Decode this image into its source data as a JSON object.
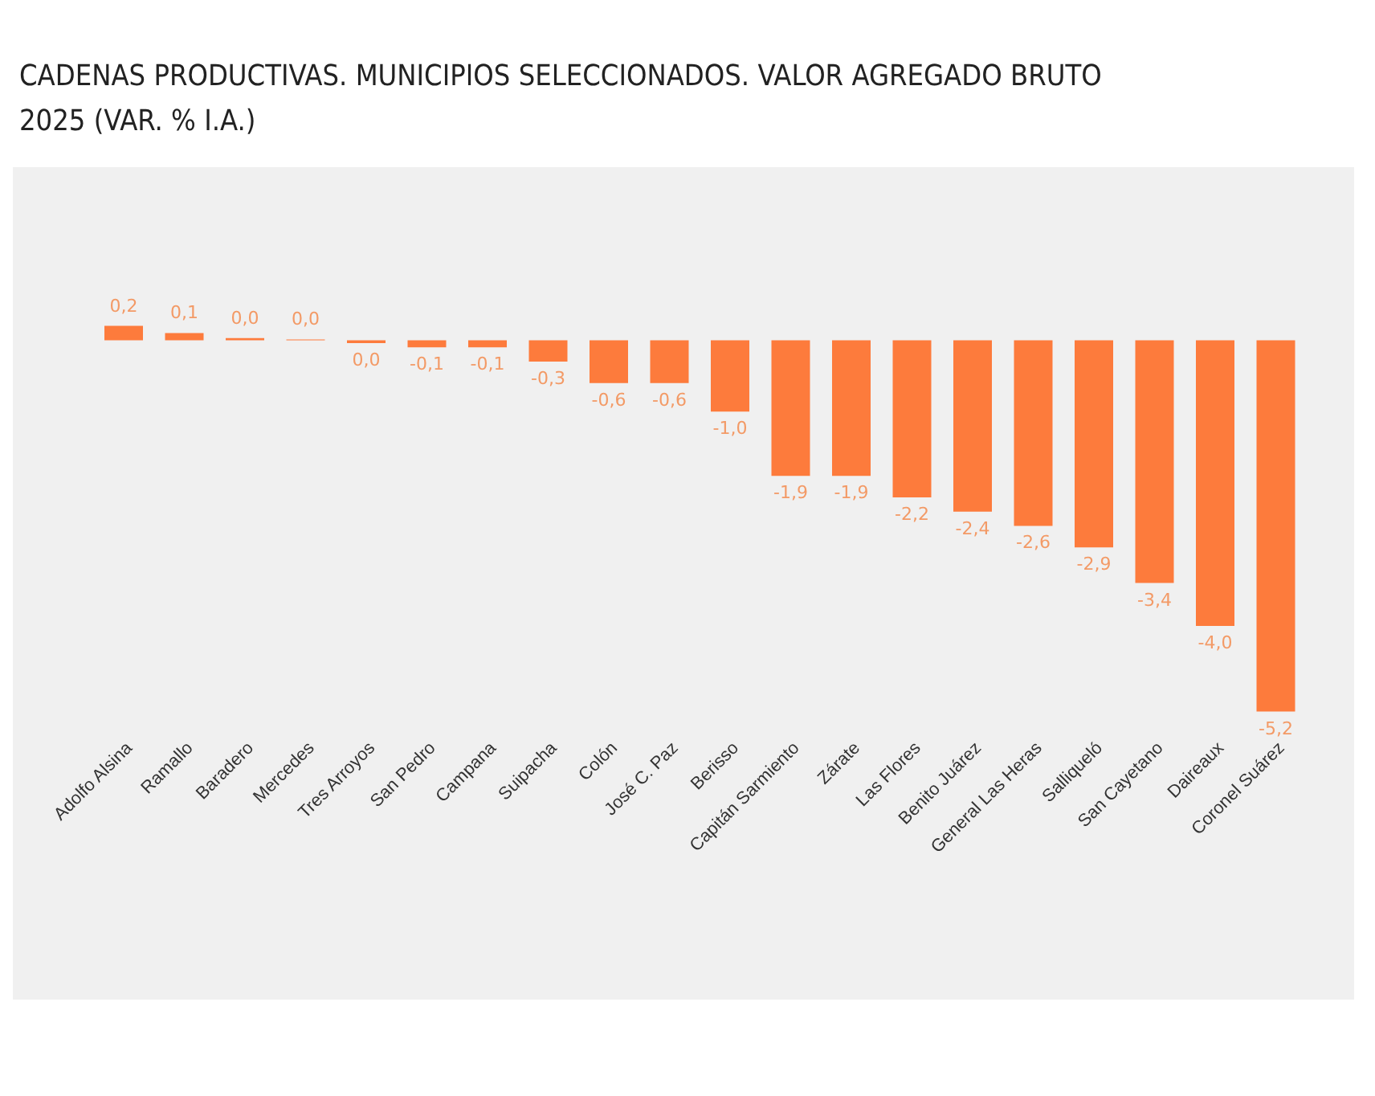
{
  "chart_data": {
    "type": "bar",
    "title": "CADENAS PRODUCTIVAS. MUNICIPIOS SELECCIONADOS. VALOR AGREGADO BRUTO 2025 (VAR. % I.A.)",
    "categories": [
      "Adolfo Alsina",
      "Ramallo",
      "Baradero",
      "Mercedes",
      "Tres Arroyos",
      "San Pedro",
      "Campana",
      "Suipacha",
      "Colón",
      "José C. Paz",
      "Berisso",
      "Capitán Sarmiento",
      "Zárate",
      "Las Flores",
      "Benito Juárez",
      "General Las Heras",
      "Salliqueló",
      "San Cayetano",
      "Daireaux",
      "Coronel Suárez"
    ],
    "values": [
      0.2,
      0.1,
      0.03,
      0.01,
      -0.04,
      -0.1,
      -0.1,
      -0.3,
      -0.6,
      -0.6,
      -1.0,
      -1.9,
      -1.9,
      -2.2,
      -2.4,
      -2.6,
      -2.9,
      -3.4,
      -4.0,
      -5.2
    ],
    "value_labels": [
      "0,2",
      "0,1",
      "0,0",
      "0,0",
      "0,0",
      "-0,1",
      "-0,1",
      "-0,3",
      "-0,6",
      "-0,6",
      "-1,0",
      "-1,9",
      "-1,9",
      "-2,2",
      "-2,4",
      "-2,6",
      "-2,9",
      "-3,4",
      "-4,0",
      "-5,2"
    ],
    "color": "#fd7b3c",
    "grid": false,
    "legend": false
  }
}
